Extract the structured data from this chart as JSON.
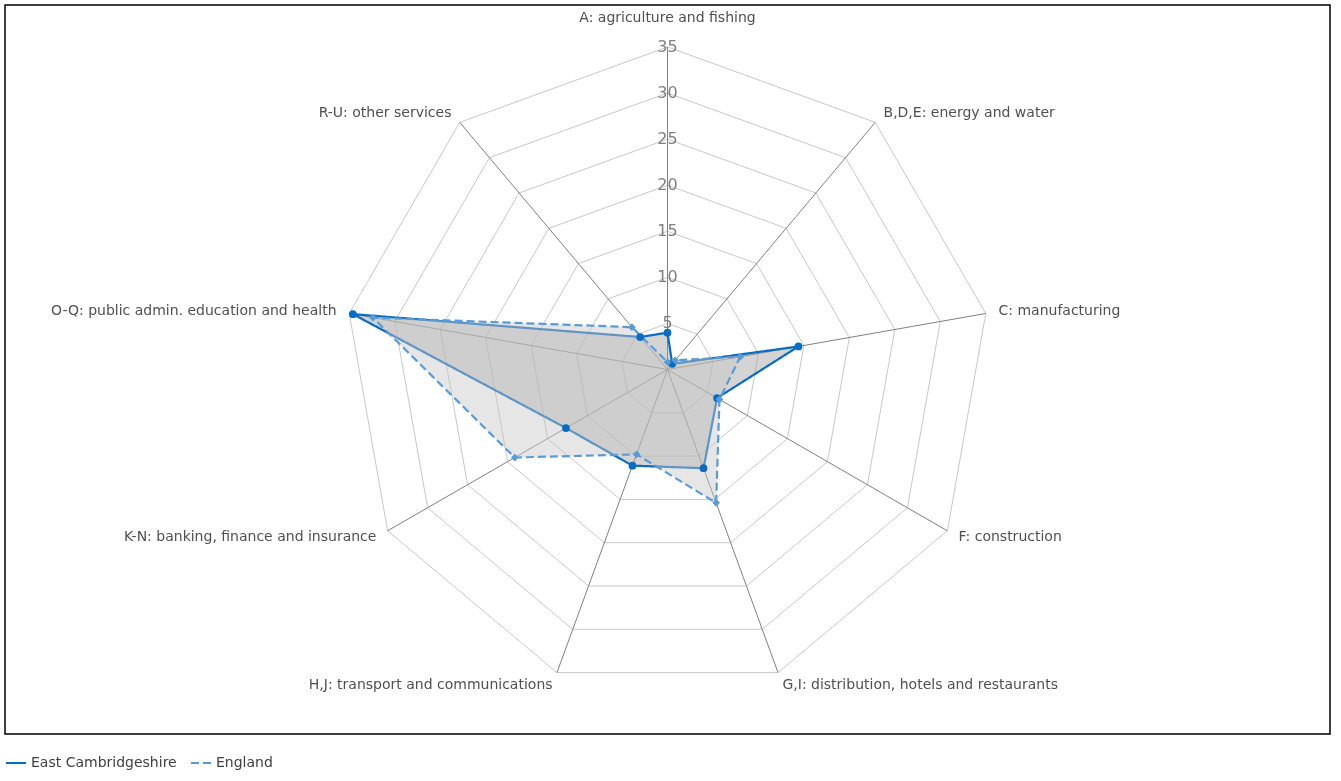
{
  "chart_data": {
    "type": "radar",
    "categories": [
      "A: agriculture and fishing",
      "B,D,E: energy and water",
      "C: manufacturing",
      "F: construction",
      "G,I: distribution, hotels and restaurants",
      "H,J: transport and communications",
      "K-N: banking, finance and insurance",
      "O-Q: public admin. education and health",
      "R-U: other services"
    ],
    "series": [
      {
        "name": "East Cambridgeshire",
        "color": "#0a6bc2",
        "marker": "circle",
        "line_style": "solid",
        "values": [
          4.0,
          0.8,
          14.4,
          6.2,
          11.4,
          11.1,
          12.7,
          34.6,
          4.6
        ]
      },
      {
        "name": "England",
        "color": "#5b9bd5",
        "marker": "diamond",
        "line_style": "dashed",
        "values": [
          0.8,
          1.3,
          8.0,
          6.5,
          15.4,
          9.8,
          19.1,
          32.4,
          6.0
        ]
      }
    ],
    "ylim": [
      0,
      35
    ],
    "yticks": [
      5,
      10,
      15,
      20,
      25,
      30,
      35
    ],
    "grid": true,
    "legend": "bottom"
  }
}
